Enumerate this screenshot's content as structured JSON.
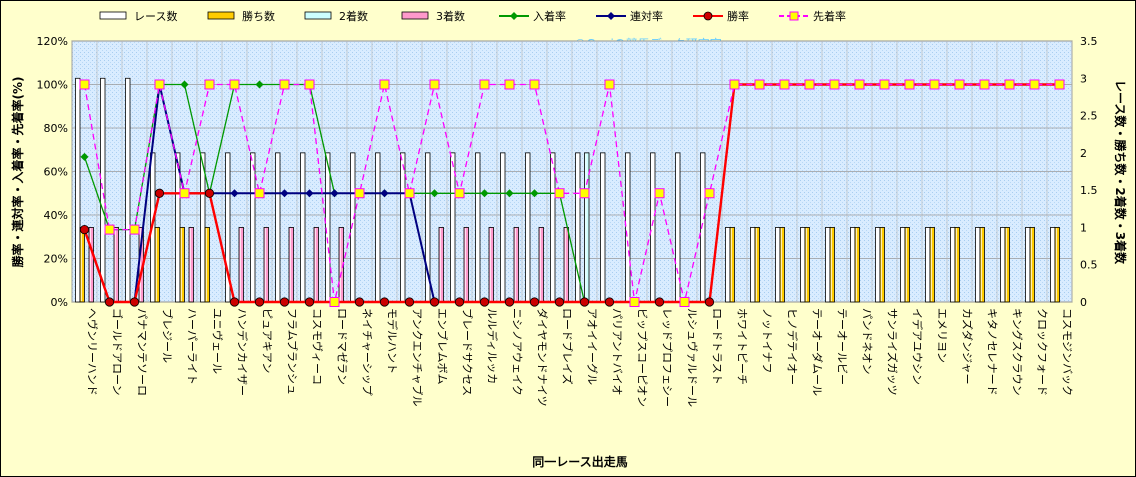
{
  "chart_data": {
    "type": "bar",
    "title": "",
    "watermark": "©Ganiの競馬データ研究室",
    "xlabel": "同一レース出走馬",
    "ylabel_left": "勝率・連対率・入着率・先着率(%)",
    "ylabel_right": "レース数・勝ち数・2着数・3着数",
    "ylim_left": [
      0,
      120
    ],
    "ylim_right": [
      0,
      3.5
    ],
    "yticks_left": [
      "0%",
      "20%",
      "40%",
      "60%",
      "80%",
      "100%",
      "120%"
    ],
    "yticks_right": [
      "0",
      "0.5",
      "1",
      "1.5",
      "2",
      "2.5",
      "3",
      "3.5"
    ],
    "legend_position": "top",
    "grid": true,
    "categories": [
      "ヘヴンリーハンド",
      "ゴールドアローン",
      "パナマンテソーロ",
      "ブレジール",
      "ハーパーライト",
      "ユニヴェール",
      "ハンデンカイザー",
      "ピュアキアン",
      "フラムブランシュ",
      "コスモヴィーコ",
      "ロードマゼラン",
      "ネイチャーシップ",
      "モデルハント",
      "アンクエンチャブル",
      "エンブレムボム",
      "ブレードサクセス",
      "ルルディルッカ",
      "ニシノアウェイク",
      "ダイヤモンドナイツ",
      "ロードブレイズ",
      "アオイイーグル",
      "パリアントバイオ",
      "ビップスコーピオン",
      "レッドプロフェシー",
      "ルシュヴァルドール",
      "ロードトラスト",
      "ホワイトピーチ",
      "ノットイナフ",
      "ヒノデテイオー",
      "テーオーダムール",
      "テーオールビー",
      "パンドネオン",
      "サンライズガッツ",
      "イデアユウシン",
      "エメリヨン",
      "カズダンジャー",
      "キタノセレナード",
      "キングスクラウン",
      "クロックフォード",
      "コスモジンバック"
    ],
    "series": [
      {
        "name": "レース数",
        "kind": "bar",
        "axis": "right",
        "color": "#ffffff",
        "values": [
          3,
          3,
          3,
          2,
          2,
          2,
          2,
          2,
          2,
          2,
          2,
          2,
          2,
          2,
          2,
          2,
          2,
          2,
          2,
          2,
          2,
          2,
          2,
          2,
          2,
          2,
          1,
          1,
          1,
          1,
          1,
          1,
          1,
          1,
          1,
          1,
          1,
          1,
          1,
          1
        ]
      },
      {
        "name": "勝ち数",
        "kind": "bar",
        "axis": "right",
        "color": "#ffcc00",
        "values": [
          1,
          0,
          0,
          1,
          1,
          1,
          0,
          0,
          0,
          0,
          0,
          0,
          0,
          0,
          0,
          0,
          0,
          0,
          0,
          0,
          0,
          0,
          0,
          0,
          0,
          0,
          1,
          1,
          1,
          1,
          1,
          1,
          1,
          1,
          1,
          1,
          1,
          1,
          1,
          1
        ]
      },
      {
        "name": "2着数",
        "kind": "bar",
        "axis": "right",
        "color": "#ccffff",
        "values": [
          0,
          0,
          0,
          0,
          0,
          0,
          0,
          0,
          0,
          0,
          0,
          0,
          0,
          0,
          0,
          0,
          0,
          0,
          0,
          0,
          2,
          0,
          0,
          0,
          0,
          0,
          0,
          0,
          0,
          0,
          0,
          0,
          0,
          0,
          0,
          0,
          0,
          0,
          0,
          0
        ]
      },
      {
        "name": "3着数",
        "kind": "bar",
        "axis": "right",
        "color": "#ff99cc",
        "values": [
          1,
          1,
          1,
          0,
          1,
          0,
          1,
          1,
          1,
          1,
          1,
          0,
          0,
          0,
          1,
          1,
          1,
          1,
          1,
          1,
          0,
          0,
          0,
          0,
          0,
          0,
          0,
          0,
          0,
          0,
          0,
          0,
          0,
          0,
          0,
          0,
          0,
          0,
          0,
          0
        ]
      },
      {
        "name": "入着率",
        "kind": "line",
        "axis": "left",
        "color": "#009900",
        "marker": "diamond",
        "values": [
          66.7,
          33.3,
          33.3,
          100,
          100,
          50,
          100,
          100,
          100,
          100,
          50,
          50,
          50,
          50,
          50,
          50,
          50,
          50,
          50,
          50,
          0,
          null,
          null,
          null,
          null,
          null,
          null,
          null,
          null,
          null,
          null,
          null,
          null,
          null,
          null,
          null,
          null,
          null,
          null,
          null
        ]
      },
      {
        "name": "連対率",
        "kind": "line",
        "axis": "left",
        "color": "#000080",
        "marker": "diamond",
        "values": [
          33.3,
          0,
          0,
          100,
          50,
          50,
          50,
          50,
          50,
          50,
          50,
          50,
          50,
          50,
          0,
          null,
          null,
          null,
          null,
          null,
          null,
          null,
          null,
          null,
          null,
          null,
          null,
          null,
          null,
          null,
          null,
          null,
          null,
          null,
          null,
          null,
          null,
          null,
          null,
          null
        ]
      },
      {
        "name": "勝率",
        "kind": "line",
        "axis": "left",
        "color": "#ff0000",
        "marker": "circle",
        "values": [
          33.3,
          0,
          0,
          50,
          50,
          50,
          0,
          0,
          0,
          0,
          0,
          0,
          0,
          0,
          0,
          0,
          0,
          0,
          0,
          0,
          0,
          0,
          0,
          0,
          0,
          0,
          100,
          100,
          100,
          100,
          100,
          100,
          100,
          100,
          100,
          100,
          100,
          100,
          100,
          100
        ]
      },
      {
        "name": "先着率",
        "kind": "line",
        "axis": "left",
        "color": "#ff00ff",
        "dashed": true,
        "marker": "square",
        "values": [
          100,
          33.3,
          33.3,
          100,
          50,
          100,
          100,
          50,
          100,
          100,
          0,
          50,
          100,
          50,
          100,
          50,
          100,
          100,
          100,
          50,
          50,
          100,
          0,
          50,
          0,
          50,
          100,
          100,
          100,
          100,
          100,
          100,
          100,
          100,
          100,
          100,
          100,
          100,
          100,
          100
        ]
      }
    ]
  }
}
